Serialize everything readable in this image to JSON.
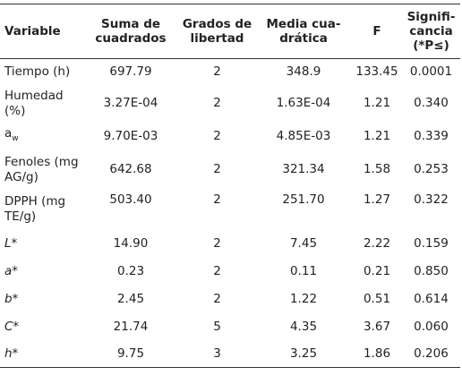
{
  "headers": {
    "variable": "Variable",
    "sum_of_squares": "Suma de cuadrados",
    "degrees_of_freedom": "Grados de libertad",
    "mean_square": "Media cua-drática",
    "f": "F",
    "significance": "Signifi-cancia (*P≤)"
  },
  "rows": [
    {
      "variable": "Tiempo (h)",
      "sum": "697.79",
      "df": "2",
      "mean": "348.9",
      "f": "133.45",
      "sig": "0.0001"
    },
    {
      "variable": "Humedad (%)",
      "sum": "3.27E-04",
      "df": "2",
      "mean": "1.63E-04",
      "f": "1.21",
      "sig": "0.340"
    },
    {
      "variable_main": "a",
      "variable_sub": "w",
      "sum": "9.70E-03",
      "df": "2",
      "mean": "4.85E-03",
      "f": "1.21",
      "sig": "0.339"
    },
    {
      "variable": "Fenoles (mg AG/g)",
      "sum": "642.68",
      "df": "2",
      "mean": "321.34",
      "f": "1.58",
      "sig": "0.253"
    },
    {
      "variable": "DPPH (mg TE/g)",
      "sum": "503.40",
      "df": "2",
      "mean": "251.70",
      "f": "1.27",
      "sig": "0.322"
    },
    {
      "variable": "L*",
      "sum": "14.90",
      "df": "2",
      "mean": "7.45",
      "f": "2.22",
      "sig": "0.159"
    },
    {
      "variable": "a*",
      "sum": "0.23",
      "df": "2",
      "mean": "0.11",
      "f": "0.21",
      "sig": "0.850"
    },
    {
      "variable": "b*",
      "sum": "2.45",
      "df": "2",
      "mean": "1.22",
      "f": "0.51",
      "sig": "0.614"
    },
    {
      "variable": "C*",
      "sum": "21.74",
      "df": "5",
      "mean": "4.35",
      "f": "3.67",
      "sig": "0.060"
    },
    {
      "variable": "h*",
      "sum": "9.75",
      "df": "3",
      "mean": "3.25",
      "f": "1.86",
      "sig": "0.206"
    }
  ]
}
